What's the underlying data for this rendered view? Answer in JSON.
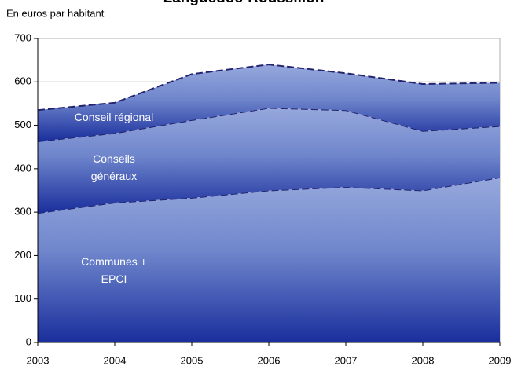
{
  "chart_data": {
    "type": "stacked_area",
    "title": "Languedoc-Roussillon",
    "y_label": "En euros par habitant",
    "x": [
      2003,
      2004,
      2005,
      2006,
      2007,
      2008,
      2009
    ],
    "xlim": [
      2003,
      2009
    ],
    "xticks": [
      2003,
      2004,
      2005,
      2006,
      2007,
      2008,
      2009
    ],
    "ylim": [
      0,
      700
    ],
    "yticks": [
      0,
      100,
      200,
      300,
      400,
      500,
      600,
      700
    ],
    "grid": true,
    "series": [
      {
        "name": "Communes + EPCI",
        "color": "#2536a0",
        "values": [
          298,
          322,
          333,
          350,
          358,
          350,
          380
        ]
      },
      {
        "name": "Conseils généraux",
        "color": "#2536a0",
        "values": [
          165,
          160,
          179,
          190,
          177,
          137,
          118
        ]
      },
      {
        "name": "Conseil régional",
        "color": "#2536a0",
        "values": [
          72,
          70,
          106,
          100,
          85,
          108,
          100
        ]
      }
    ]
  }
}
